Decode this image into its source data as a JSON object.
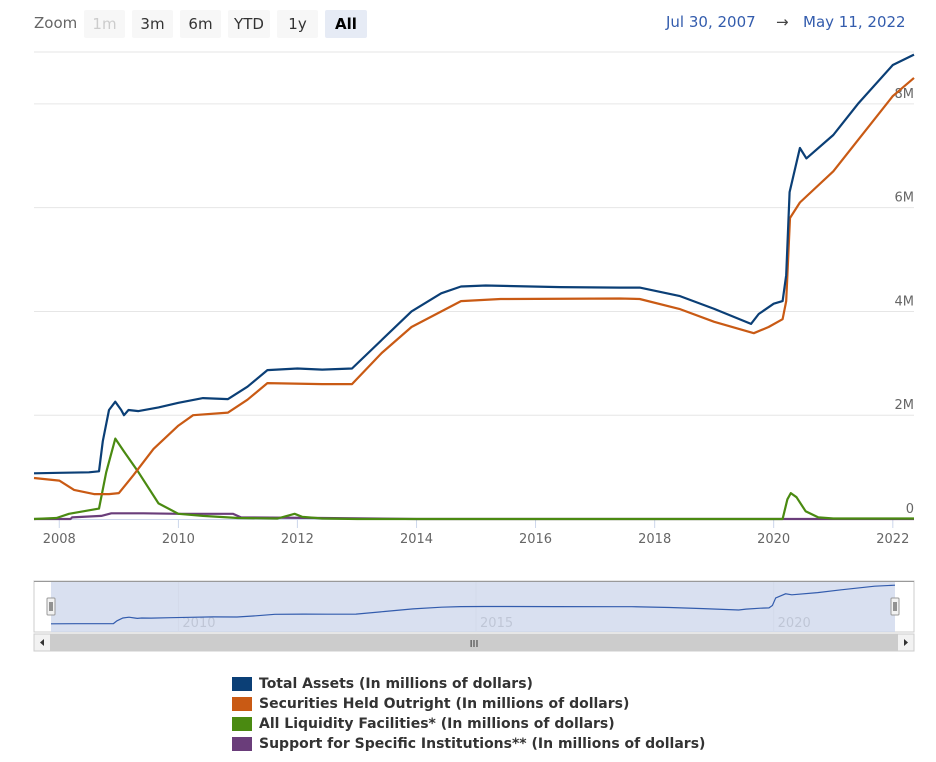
{
  "toolbar": {
    "zoom_label": "Zoom",
    "buttons": [
      {
        "label": "1m",
        "state": "disabled"
      },
      {
        "label": "3m",
        "state": "normal"
      },
      {
        "label": "6m",
        "state": "normal"
      },
      {
        "label": "YTD",
        "state": "normal"
      },
      {
        "label": "1y",
        "state": "normal"
      },
      {
        "label": "All",
        "state": "active"
      }
    ],
    "range_from": "Jul 30, 2007",
    "range_arrow": "→",
    "range_to": "May 11, 2022"
  },
  "colors": {
    "total_assets": "#0b3f76",
    "securities": "#c95a14",
    "liquidity": "#4a8a11",
    "support": "#6a3d7a",
    "navigator_fill": "#ccd6eb",
    "navigator_line": "#335cad",
    "grid": "#e6e6e6"
  },
  "chart_data": {
    "type": "line",
    "x_axis": {
      "type": "datetime",
      "range": [
        "2007-07-30",
        "2022-05-11"
      ],
      "tick_labels": [
        "2008",
        "2010",
        "2012",
        "2014",
        "2016",
        "2018",
        "2020",
        "2022"
      ]
    },
    "y_axis": {
      "unit": "millions of dollars",
      "range": [
        0,
        9000000
      ],
      "tick_labels": [
        "0",
        "2M",
        "4M",
        "6M",
        "8M"
      ],
      "tick_values": [
        0,
        2000000,
        4000000,
        6000000,
        8000000
      ],
      "label_position": "right"
    },
    "grid": true,
    "legend_position": "bottom",
    "series": [
      {
        "name": "Total Assets (In millions of dollars)",
        "color_key": "total_assets",
        "points": [
          [
            "2007-07-30",
            880000
          ],
          [
            "2008-01-01",
            890000
          ],
          [
            "2008-07-01",
            900000
          ],
          [
            "2008-09-01",
            920000
          ],
          [
            "2008-09-24",
            1500000
          ],
          [
            "2008-11-01",
            2100000
          ],
          [
            "2008-12-10",
            2260000
          ],
          [
            "2009-01-15",
            2100000
          ],
          [
            "2009-02-01",
            2000000
          ],
          [
            "2009-03-01",
            2100000
          ],
          [
            "2009-05-01",
            2080000
          ],
          [
            "2009-09-01",
            2150000
          ],
          [
            "2010-01-01",
            2240000
          ],
          [
            "2010-06-01",
            2330000
          ],
          [
            "2010-11-01",
            2310000
          ],
          [
            "2011-03-01",
            2550000
          ],
          [
            "2011-07-01",
            2870000
          ],
          [
            "2012-01-01",
            2900000
          ],
          [
            "2012-06-01",
            2880000
          ],
          [
            "2012-12-01",
            2900000
          ],
          [
            "2013-06-01",
            3450000
          ],
          [
            "2013-12-01",
            4000000
          ],
          [
            "2014-06-01",
            4350000
          ],
          [
            "2014-10-01",
            4480000
          ],
          [
            "2015-03-01",
            4500000
          ],
          [
            "2016-06-01",
            4470000
          ],
          [
            "2017-06-01",
            4460000
          ],
          [
            "2017-10-01",
            4460000
          ],
          [
            "2018-06-01",
            4300000
          ],
          [
            "2019-01-01",
            4050000
          ],
          [
            "2019-08-15",
            3760000
          ],
          [
            "2019-10-01",
            3950000
          ],
          [
            "2020-01-01",
            4150000
          ],
          [
            "2020-02-25",
            4200000
          ],
          [
            "2020-03-18",
            4700000
          ],
          [
            "2020-04-08",
            6300000
          ],
          [
            "2020-06-10",
            7150000
          ],
          [
            "2020-07-20",
            6950000
          ],
          [
            "2021-01-01",
            7400000
          ],
          [
            "2021-06-01",
            8000000
          ],
          [
            "2022-01-01",
            8750000
          ],
          [
            "2022-05-11",
            8950000
          ]
        ]
      },
      {
        "name": "Securities Held Outright (In millions of dollars)",
        "color_key": "securities",
        "points": [
          [
            "2007-07-30",
            790000
          ],
          [
            "2008-01-01",
            740000
          ],
          [
            "2008-04-01",
            560000
          ],
          [
            "2008-08-01",
            480000
          ],
          [
            "2008-11-01",
            480000
          ],
          [
            "2009-01-01",
            500000
          ],
          [
            "2009-04-01",
            850000
          ],
          [
            "2009-08-01",
            1350000
          ],
          [
            "2010-01-01",
            1800000
          ],
          [
            "2010-04-01",
            2000000
          ],
          [
            "2010-11-01",
            2050000
          ],
          [
            "2011-03-01",
            2300000
          ],
          [
            "2011-07-01",
            2620000
          ],
          [
            "2012-06-01",
            2600000
          ],
          [
            "2012-12-01",
            2600000
          ],
          [
            "2013-06-01",
            3200000
          ],
          [
            "2013-12-01",
            3700000
          ],
          [
            "2014-10-01",
            4200000
          ],
          [
            "2015-06-01",
            4240000
          ],
          [
            "2017-06-01",
            4250000
          ],
          [
            "2017-10-01",
            4240000
          ],
          [
            "2018-06-01",
            4050000
          ],
          [
            "2019-01-01",
            3800000
          ],
          [
            "2019-09-01",
            3580000
          ],
          [
            "2019-12-01",
            3700000
          ],
          [
            "2020-02-25",
            3850000
          ],
          [
            "2020-03-18",
            4200000
          ],
          [
            "2020-04-10",
            5800000
          ],
          [
            "2020-06-10",
            6100000
          ],
          [
            "2021-01-01",
            6700000
          ],
          [
            "2021-06-01",
            7300000
          ],
          [
            "2022-01-01",
            8150000
          ],
          [
            "2022-05-11",
            8500000
          ]
        ]
      },
      {
        "name": "All Liquidity Facilities* (In millions of dollars)",
        "color_key": "liquidity",
        "points": [
          [
            "2007-07-30",
            0
          ],
          [
            "2007-12-15",
            20000
          ],
          [
            "2008-03-01",
            100000
          ],
          [
            "2008-09-01",
            200000
          ],
          [
            "2008-10-15",
            900000
          ],
          [
            "2008-12-10",
            1550000
          ],
          [
            "2009-02-01",
            1300000
          ],
          [
            "2009-05-01",
            900000
          ],
          [
            "2009-09-01",
            300000
          ],
          [
            "2010-01-01",
            100000
          ],
          [
            "2010-06-01",
            60000
          ],
          [
            "2011-01-01",
            20000
          ],
          [
            "2011-09-01",
            10000
          ],
          [
            "2011-12-15",
            100000
          ],
          [
            "2012-02-01",
            40000
          ],
          [
            "2012-06-01",
            10000
          ],
          [
            "2013-01-01",
            0
          ],
          [
            "2020-02-25",
            0
          ],
          [
            "2020-03-25",
            380000
          ],
          [
            "2020-04-15",
            500000
          ],
          [
            "2020-05-20",
            420000
          ],
          [
            "2020-07-15",
            150000
          ],
          [
            "2020-10-01",
            30000
          ],
          [
            "2021-01-01",
            10000
          ],
          [
            "2022-05-11",
            10000
          ]
        ]
      },
      {
        "name": "Support for Specific Institutions** (In millions of dollars)",
        "color_key": "support",
        "points": [
          [
            "2007-07-30",
            0
          ],
          [
            "2008-03-10",
            0
          ],
          [
            "2008-03-20",
            30000
          ],
          [
            "2008-09-15",
            60000
          ],
          [
            "2008-11-15",
            110000
          ],
          [
            "2009-06-01",
            110000
          ],
          [
            "2010-01-01",
            100000
          ],
          [
            "2010-12-01",
            100000
          ],
          [
            "2011-01-20",
            30000
          ],
          [
            "2012-06-01",
            20000
          ],
          [
            "2014-01-01",
            0
          ],
          [
            "2022-05-11",
            0
          ]
        ]
      }
    ],
    "navigator": {
      "x_range": [
        "2007-07-30",
        "2022-05-11"
      ],
      "tick_labels": [
        "2010",
        "2015",
        "2020"
      ]
    }
  },
  "legend": {
    "items": [
      {
        "label": "Total Assets (In millions of dollars)",
        "color_key": "total_assets"
      },
      {
        "label": "Securities Held Outright (In millions of dollars)",
        "color_key": "securities"
      },
      {
        "label": "All Liquidity Facilities* (In millions of dollars)",
        "color_key": "liquidity"
      },
      {
        "label": "Support for Specific Institutions** (In millions of dollars)",
        "color_key": "support"
      }
    ]
  },
  "scrollbar": {
    "grip": "III"
  }
}
